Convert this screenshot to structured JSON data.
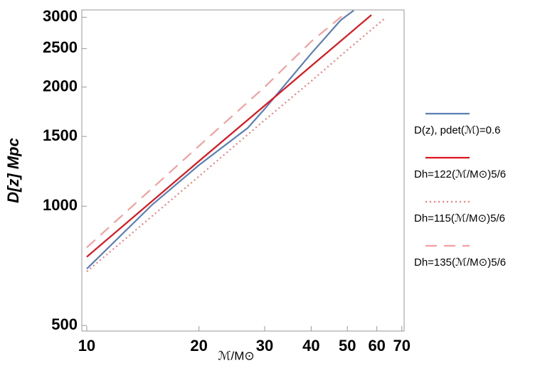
{
  "chart_data": {
    "type": "line",
    "x_label": "ℳ/M⊙",
    "y_label": "D[z] Mpc",
    "log_x": true,
    "log_y": true,
    "xlim": [
      9.7,
      71
    ],
    "ylim": [
      484,
      3130
    ],
    "xticks": [
      10,
      20,
      30,
      40,
      50,
      60,
      70
    ],
    "yticks": [
      500,
      1000,
      1500,
      2000,
      2500,
      3000
    ],
    "series": [
      {
        "name": "D(z), pdet(ℳ)=0.6",
        "color": "#5b7fb5",
        "style": "solid",
        "x": [
          10,
          15,
          20,
          27,
          30,
          40,
          48,
          52
        ],
        "values": [
          695,
          1010,
          1270,
          1575,
          1760,
          2430,
          2950,
          3120
        ]
      },
      {
        "name": "Dh=122(ℳ/M⊙)5/6",
        "color": "#e0141c",
        "style": "solid",
        "x": [
          10,
          20,
          30,
          40,
          50,
          58
        ],
        "values": [
          745,
          1300,
          1795,
          2260,
          2700,
          3040
        ]
      },
      {
        "name": "Dh=115(ℳ/M⊙)5/6",
        "color": "#f07f7f",
        "style": "dotted",
        "x": [
          10,
          20,
          30,
          40,
          50,
          63
        ],
        "values": [
          684,
          1190,
          1650,
          2070,
          2480,
          2980
        ]
      },
      {
        "name": "Dh=135(ℳ/M⊙)5/6",
        "color": "#f4a0a0",
        "style": "dashed",
        "x": [
          10,
          20,
          30,
          40,
          50
        ],
        "values": [
          787,
          1420,
          2000,
          2605,
          3100
        ]
      }
    ]
  }
}
